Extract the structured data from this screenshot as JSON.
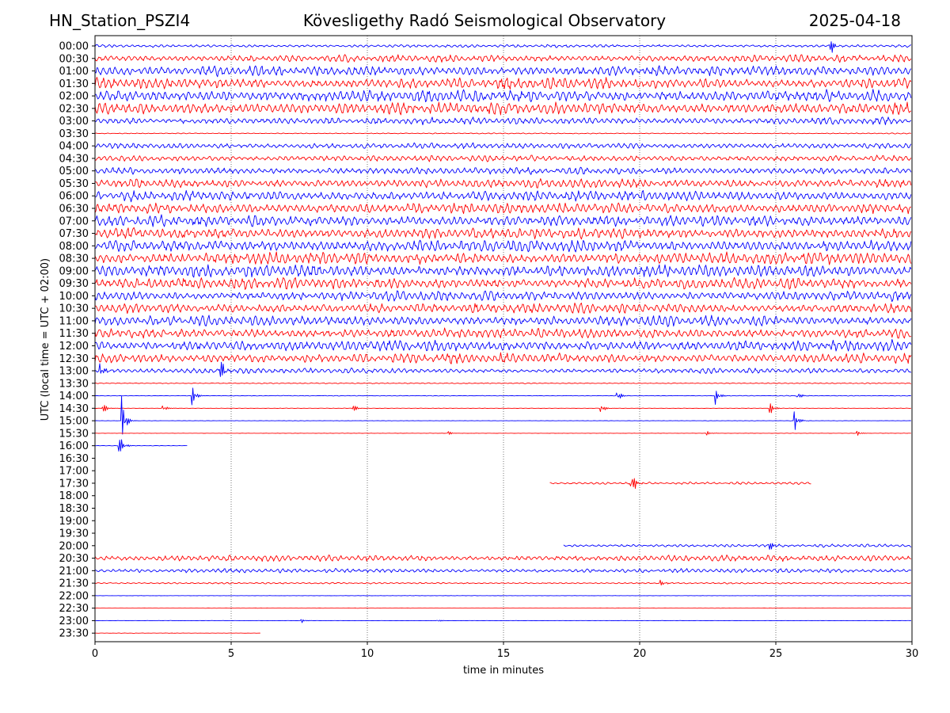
{
  "header": {
    "station": "HN_Station_PSZI4",
    "title": "Kövesligethy Radó Seismological Observatory",
    "date": "2025-04-18"
  },
  "colors": {
    "line_odd": "#0000ff",
    "line_even": "#ff0000",
    "grid": "#555555"
  },
  "chart_data": {
    "type": "line",
    "subtype": "helicorder",
    "xlabel": "time in minutes",
    "ylabel": "UTC (local time = UTC + 02:00)",
    "xlim": [
      0,
      30
    ],
    "xticks": [
      0,
      5,
      10,
      15,
      20,
      25,
      30
    ],
    "grid": "vertical dotted at x ticks",
    "rows": [
      {
        "label": "00:00",
        "color": "blue",
        "start": 0,
        "end": 30,
        "amp": 0.3
      },
      {
        "label": "00:30",
        "color": "red",
        "start": 0,
        "end": 30,
        "amp": 0.7
      },
      {
        "label": "01:00",
        "color": "blue",
        "start": 0,
        "end": 30,
        "amp": 1.0
      },
      {
        "label": "01:30",
        "color": "red",
        "start": 0,
        "end": 30,
        "amp": 1.1
      },
      {
        "label": "02:00",
        "color": "blue",
        "start": 0,
        "end": 30,
        "amp": 1.2
      },
      {
        "label": "02:30",
        "color": "red",
        "start": 0,
        "end": 30,
        "amp": 1.2
      },
      {
        "label": "03:00",
        "color": "blue",
        "start": 0,
        "end": 30,
        "amp": 0.7
      },
      {
        "label": "03:30",
        "color": "red",
        "start": 0,
        "end": 30,
        "amp": 0.1
      },
      {
        "label": "04:00",
        "color": "blue",
        "start": 0,
        "end": 30,
        "amp": 0.6
      },
      {
        "label": "04:30",
        "color": "red",
        "start": 0,
        "end": 30,
        "amp": 0.6
      },
      {
        "label": "05:00",
        "color": "blue",
        "start": 0,
        "end": 30,
        "amp": 0.7
      },
      {
        "label": "05:30",
        "color": "red",
        "start": 0,
        "end": 30,
        "amp": 0.9
      },
      {
        "label": "06:00",
        "color": "blue",
        "start": 0,
        "end": 30,
        "amp": 1.0
      },
      {
        "label": "06:30",
        "color": "red",
        "start": 0,
        "end": 30,
        "amp": 1.1
      },
      {
        "label": "07:00",
        "color": "blue",
        "start": 0,
        "end": 30,
        "amp": 1.1
      },
      {
        "label": "07:30",
        "color": "red",
        "start": 0,
        "end": 30,
        "amp": 1.1
      },
      {
        "label": "08:00",
        "color": "blue",
        "start": 0,
        "end": 30,
        "amp": 1.2
      },
      {
        "label": "08:30",
        "color": "red",
        "start": 0,
        "end": 30,
        "amp": 1.2
      },
      {
        "label": "09:00",
        "color": "blue",
        "start": 0,
        "end": 30,
        "amp": 1.2
      },
      {
        "label": "09:30",
        "color": "red",
        "start": 0,
        "end": 30,
        "amp": 1.1
      },
      {
        "label": "10:00",
        "color": "blue",
        "start": 0,
        "end": 30,
        "amp": 1.0
      },
      {
        "label": "10:30",
        "color": "red",
        "start": 0,
        "end": 30,
        "amp": 1.0
      },
      {
        "label": "11:00",
        "color": "blue",
        "start": 0,
        "end": 30,
        "amp": 1.0
      },
      {
        "label": "11:30",
        "color": "red",
        "start": 0,
        "end": 30,
        "amp": 1.0
      },
      {
        "label": "12:00",
        "color": "blue",
        "start": 0,
        "end": 30,
        "amp": 1.1
      },
      {
        "label": "12:30",
        "color": "red",
        "start": 0,
        "end": 30,
        "amp": 1.0
      },
      {
        "label": "13:00",
        "color": "blue",
        "start": 0,
        "end": 30,
        "amp": 0.5
      },
      {
        "label": "13:30",
        "color": "red",
        "start": 0,
        "end": 30,
        "amp": 0.1
      },
      {
        "label": "14:00",
        "color": "blue",
        "start": 0,
        "end": 30,
        "amp": 0.06
      },
      {
        "label": "14:30",
        "color": "red",
        "start": 0,
        "end": 30,
        "amp": 0.04
      },
      {
        "label": "15:00",
        "color": "blue",
        "start": 0,
        "end": 30,
        "amp": 0.03
      },
      {
        "label": "15:30",
        "color": "red",
        "start": 0,
        "end": 30,
        "amp": 0.03
      },
      {
        "label": "16:00",
        "color": "blue",
        "start": 0,
        "end": 3.4,
        "amp": 0.04
      },
      {
        "label": "16:30",
        "color": "red",
        "start": null,
        "end": null,
        "amp": 0
      },
      {
        "label": "17:00",
        "color": "blue",
        "start": null,
        "end": null,
        "amp": 0
      },
      {
        "label": "17:30",
        "color": "red",
        "start": 16.7,
        "end": 26.3,
        "amp": 0.25
      },
      {
        "label": "18:00",
        "color": "blue",
        "start": null,
        "end": null,
        "amp": 0
      },
      {
        "label": "18:30",
        "color": "red",
        "start": null,
        "end": null,
        "amp": 0
      },
      {
        "label": "19:00",
        "color": "blue",
        "start": null,
        "end": null,
        "amp": 0
      },
      {
        "label": "19:30",
        "color": "red",
        "start": null,
        "end": null,
        "amp": 0
      },
      {
        "label": "20:00",
        "color": "blue",
        "start": 17.2,
        "end": 30,
        "amp": 0.3
      },
      {
        "label": "20:30",
        "color": "red",
        "start": 0,
        "end": 30,
        "amp": 0.6
      },
      {
        "label": "21:00",
        "color": "blue",
        "start": 0,
        "end": 30,
        "amp": 0.4
      },
      {
        "label": "21:30",
        "color": "red",
        "start": 0,
        "end": 30,
        "amp": 0.15
      },
      {
        "label": "22:00",
        "color": "blue",
        "start": 0,
        "end": 30,
        "amp": 0.03
      },
      {
        "label": "22:30",
        "color": "red",
        "start": 0,
        "end": 30,
        "amp": 0.02
      },
      {
        "label": "23:00",
        "color": "blue",
        "start": 0,
        "end": 30,
        "amp": 0.03
      },
      {
        "label": "23:30",
        "color": "red",
        "start": 0,
        "end": 6.1,
        "amp": 0.03
      }
    ],
    "events": [
      {
        "row": "00:00",
        "t": 27.0,
        "amp": 1.1
      },
      {
        "row": "13:00",
        "t": 0.2,
        "amp": 0.8
      },
      {
        "row": "13:00",
        "t": 4.6,
        "amp": 1.3
      },
      {
        "row": "14:00",
        "t": 3.6,
        "amp": 0.9
      },
      {
        "row": "14:00",
        "t": 19.2,
        "amp": 0.6
      },
      {
        "row": "14:00",
        "t": 22.8,
        "amp": 0.9
      },
      {
        "row": "14:00",
        "t": 25.8,
        "amp": 0.5
      },
      {
        "row": "14:30",
        "t": 0.3,
        "amp": 0.6
      },
      {
        "row": "14:30",
        "t": 2.5,
        "amp": 0.4
      },
      {
        "row": "14:30",
        "t": 9.5,
        "amp": 0.4
      },
      {
        "row": "14:30",
        "t": 18.6,
        "amp": 0.5
      },
      {
        "row": "14:30",
        "t": 24.8,
        "amp": 0.6
      },
      {
        "row": "15:00",
        "t": 1.0,
        "amp": 2.3
      },
      {
        "row": "15:00",
        "t": 25.7,
        "amp": 1.0
      },
      {
        "row": "15:30",
        "t": 13.0,
        "amp": 0.2
      },
      {
        "row": "15:30",
        "t": 22.5,
        "amp": 0.2
      },
      {
        "row": "15:30",
        "t": 28.0,
        "amp": 0.3
      },
      {
        "row": "16:00",
        "t": 0.9,
        "amp": 1.2
      },
      {
        "row": "17:30",
        "t": 19.7,
        "amp": 1.4
      },
      {
        "row": "20:00",
        "t": 24.8,
        "amp": 0.5
      },
      {
        "row": "21:30",
        "t": 20.8,
        "amp": 0.3
      },
      {
        "row": "23:00",
        "t": 7.6,
        "amp": 0.2
      },
      {
        "row": "23:00",
        "t": 12.6,
        "amp": 0.15
      }
    ]
  }
}
